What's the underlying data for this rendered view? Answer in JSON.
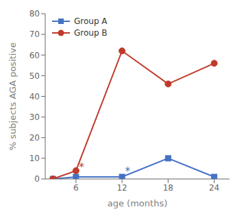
{
  "chart_data": {
    "type": "line",
    "x": [
      3,
      6,
      12,
      18,
      24
    ],
    "series": [
      {
        "name": "Group A",
        "color": "#4472c4",
        "marker": "square",
        "values": [
          0,
          1,
          1,
          10,
          1
        ]
      },
      {
        "name": "Group B",
        "color": "#c0392b",
        "marker": "circle",
        "values": [
          0,
          4,
          62,
          46,
          56
        ]
      }
    ],
    "xlabel": "age (months)",
    "ylabel": "% subjects AGA positive",
    "xlim": [
      2,
      26
    ],
    "xticks": [
      6,
      12,
      18,
      24
    ],
    "ylim": [
      0,
      80
    ],
    "yticks": [
      0,
      10,
      20,
      30,
      40,
      50,
      60,
      70,
      80
    ],
    "legend": "upper left",
    "grid": false,
    "annotations": [
      {
        "text": "*",
        "x": 6.4,
        "y": 5.5,
        "color": "#c0392b"
      },
      {
        "text": "*",
        "x": 12.4,
        "y": 3.5,
        "color": "#4472c4"
      }
    ]
  }
}
